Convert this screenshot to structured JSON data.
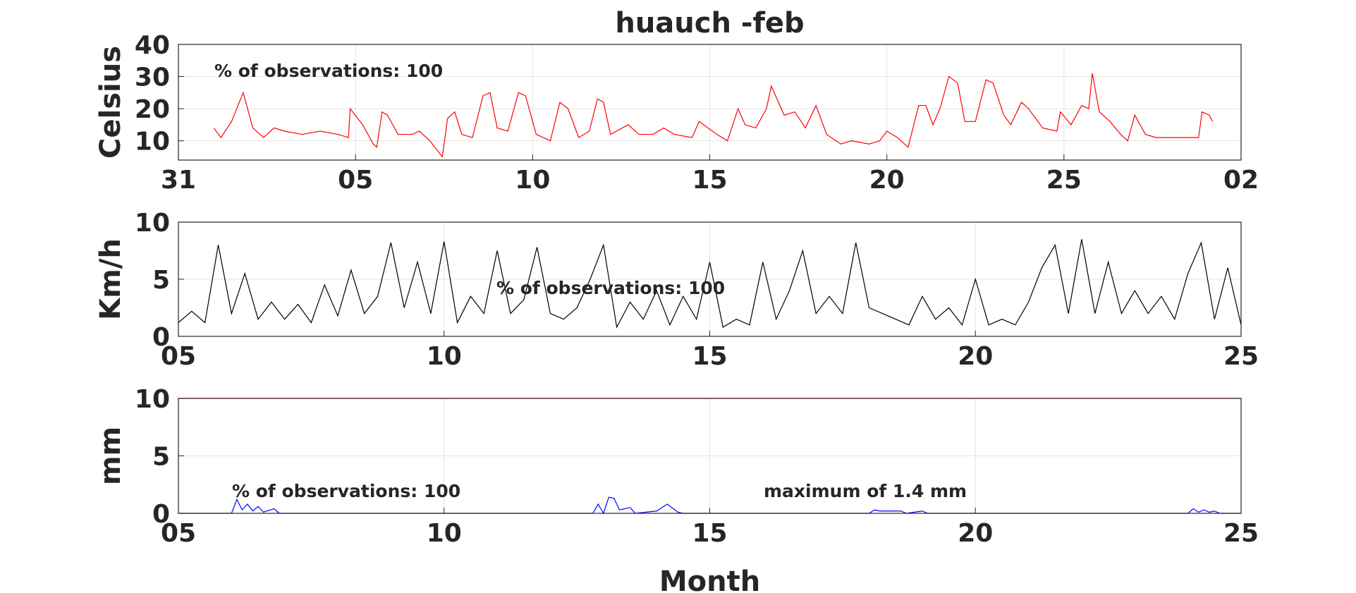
{
  "chart_data": [
    {
      "type": "line",
      "title": "huauch -feb",
      "ylabel": "Celsius",
      "annotations": [
        "% of observations: 100"
      ],
      "xlim": [
        0,
        30
      ],
      "xticks": [
        {
          "value": 0,
          "label": "31"
        },
        {
          "value": 5,
          "label": "05"
        },
        10,
        15,
        20,
        25,
        {
          "value": 30,
          "label": "02"
        }
      ],
      "ylim": [
        4,
        40
      ],
      "yticks": [
        10,
        20,
        30,
        40
      ],
      "grid": true,
      "series": [
        {
          "color": "#ff0000",
          "x": [
            1.0,
            1.2,
            1.5,
            1.83,
            2.1,
            2.4,
            2.7,
            3.0,
            3.5,
            4.0,
            4.5,
            4.8,
            4.85,
            5.2,
            5.5,
            5.6,
            5.75,
            5.9,
            6.2,
            6.6,
            6.8,
            7.1,
            7.45,
            7.6,
            7.8,
            8.0,
            8.3,
            8.6,
            8.8,
            9.0,
            9.3,
            9.6,
            9.8,
            10.1,
            10.5,
            10.77,
            11.0,
            11.3,
            11.6,
            11.83,
            12.0,
            12.2,
            12.7,
            13.0,
            13.4,
            13.7,
            14.0,
            14.5,
            14.7,
            15.2,
            15.5,
            15.8,
            16.0,
            16.3,
            16.6,
            16.74,
            17.1,
            17.4,
            17.7,
            18.0,
            18.3,
            18.7,
            19.0,
            19.5,
            19.8,
            20.0,
            20.3,
            20.6,
            20.9,
            21.1,
            21.3,
            21.5,
            21.75,
            22.0,
            22.2,
            22.5,
            22.8,
            23.0,
            23.3,
            23.5,
            23.8,
            24.0,
            24.4,
            24.8,
            24.9,
            25.2,
            25.5,
            25.7,
            25.8,
            26.0,
            26.3,
            26.6,
            26.8,
            27.0,
            27.3,
            27.6,
            28.0,
            28.5,
            28.8,
            28.9,
            29.1,
            29.2
          ],
          "values": [
            14,
            11,
            16,
            25,
            14,
            11,
            14,
            13,
            12,
            13,
            12,
            11,
            20,
            15,
            9,
            8,
            19,
            18,
            12,
            12,
            13,
            10,
            5,
            17,
            19,
            12,
            11,
            24,
            25,
            14,
            13,
            25,
            24,
            12,
            10,
            22,
            20,
            11,
            13,
            23,
            22,
            12,
            15,
            12,
            12,
            14,
            12,
            11,
            16,
            12,
            10,
            20,
            15,
            14,
            20,
            27,
            18,
            19,
            14,
            21,
            12,
            9,
            10,
            9,
            10,
            13,
            11,
            8,
            21,
            21,
            15,
            20,
            30,
            28,
            16,
            16,
            29,
            28,
            18,
            15,
            22,
            20,
            14,
            13,
            19,
            15,
            21,
            20,
            31,
            19,
            16,
            12,
            10,
            18,
            12,
            11,
            11,
            11,
            11,
            19,
            18,
            16
          ]
        }
      ]
    },
    {
      "type": "line",
      "ylabel": "Km/h",
      "annotations": [
        "% of observations: 100"
      ],
      "xlim": [
        5,
        25
      ],
      "xticks": [
        {
          "value": 5,
          "label": "05"
        },
        10,
        15,
        20,
        25
      ],
      "ylim": [
        0,
        10
      ],
      "yticks": [
        0,
        5,
        10
      ],
      "grid": true,
      "series": [
        {
          "color": "#000000",
          "x": [
            5,
            5.25,
            5.5,
            5.75,
            6,
            6.25,
            6.5,
            6.75,
            7,
            7.25,
            7.5,
            7.75,
            8,
            8.25,
            8.5,
            8.75,
            9,
            9.25,
            9.5,
            9.75,
            10,
            10.25,
            10.5,
            10.75,
            11,
            11.25,
            11.5,
            11.75,
            12,
            12.25,
            12.5,
            12.75,
            13,
            13.25,
            13.5,
            13.75,
            14,
            14.25,
            14.5,
            14.75,
            15,
            15.25,
            15.5,
            15.75,
            16,
            16.25,
            16.5,
            16.75,
            17,
            17.25,
            17.5,
            17.75,
            18,
            18.25,
            18.5,
            18.75,
            19,
            19.25,
            19.5,
            19.75,
            20,
            20.25,
            20.5,
            20.75,
            21,
            21.25,
            21.5,
            21.75,
            22,
            22.25,
            22.5,
            22.75,
            23,
            23.25,
            23.5,
            23.75,
            24,
            24.25,
            24.5,
            24.75,
            25
          ],
          "values": [
            1.2,
            2.2,
            1.2,
            8.0,
            2.0,
            5.5,
            1.5,
            3.0,
            1.5,
            2.8,
            1.2,
            4.5,
            1.8,
            5.8,
            2.0,
            3.5,
            8.2,
            2.5,
            6.5,
            2.0,
            8.3,
            1.2,
            3.5,
            2.0,
            7.5,
            2.0,
            3.2,
            7.8,
            2.0,
            1.5,
            2.5,
            5.0,
            8.0,
            0.8,
            3.0,
            1.5,
            4.0,
            1.0,
            3.5,
            1.5,
            6.5,
            0.8,
            1.5,
            1.0,
            6.5,
            1.5,
            4.0,
            7.5,
            2.0,
            3.5,
            2.0,
            8.2,
            2.5,
            2.0,
            1.5,
            1.0,
            3.5,
            1.5,
            2.5,
            1.0,
            5.0,
            1.0,
            1.5,
            1.0,
            3.0,
            6.0,
            8.0,
            2.0,
            8.5,
            2.0,
            6.5,
            2.0,
            4.0,
            2.0,
            3.5,
            1.5,
            5.5,
            8.2,
            1.5,
            6.0,
            1.0
          ]
        }
      ]
    },
    {
      "type": "line",
      "ylabel": "mm",
      "xlabel": "Month",
      "annotations": [
        "% of observations: 100",
        "maximum of 1.4 mm"
      ],
      "xlim": [
        5,
        25
      ],
      "xticks": [
        {
          "value": 5,
          "label": "05"
        },
        10,
        15,
        20,
        25
      ],
      "ylim": [
        0,
        10
      ],
      "yticks": [
        0,
        5,
        10
      ],
      "grid": true,
      "series": [
        {
          "color": "#ff0000",
          "x": [
            5,
            25
          ],
          "values": [
            10,
            10
          ]
        },
        {
          "color": "#0000ff",
          "x": [
            5,
            6.0,
            6.1,
            6.2,
            6.3,
            6.4,
            6.5,
            6.6,
            6.8,
            6.9,
            12.8,
            12.9,
            13.0,
            13.1,
            13.2,
            13.3,
            13.5,
            13.6,
            14.0,
            14.2,
            14.4,
            14.5,
            18.0,
            18.1,
            18.2,
            18.6,
            18.7,
            19.0,
            19.1,
            24.0,
            24.1,
            24.2,
            24.3,
            24.4,
            24.5,
            24.6,
            25
          ],
          "values": [
            0,
            0,
            1.2,
            0.3,
            0.8,
            0.2,
            0.6,
            0.1,
            0.4,
            0,
            0,
            0.8,
            0,
            1.4,
            1.3,
            0.3,
            0.5,
            0,
            0.2,
            0.8,
            0.1,
            0,
            0,
            0.3,
            0.2,
            0.2,
            0,
            0.2,
            0,
            0,
            0.4,
            0.1,
            0.3,
            0.1,
            0.2,
            0,
            0
          ]
        }
      ]
    }
  ]
}
